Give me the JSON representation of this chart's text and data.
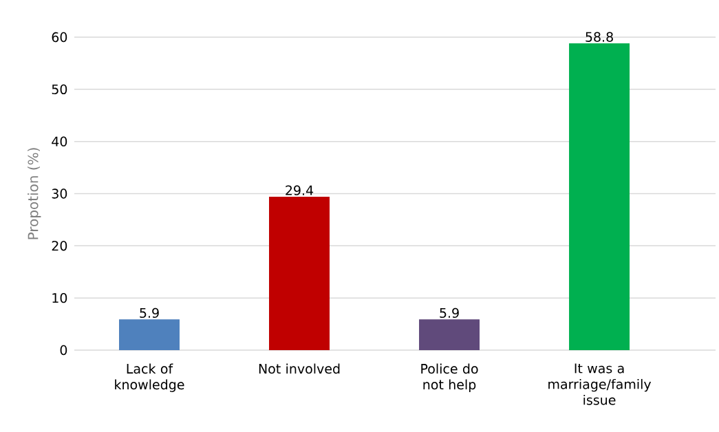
{
  "chart_data": {
    "type": "bar",
    "ylabel": "Propotion (%)",
    "categories": [
      "Lack of knowledge",
      "Not involved",
      "Police do not help",
      "It was a marriage/family issue"
    ],
    "values": [
      5.9,
      29.4,
      5.9,
      58.8
    ],
    "colors": [
      "#4f81bd",
      "#c00000",
      "#604a7b",
      "#00b050"
    ],
    "ylim": [
      0,
      60
    ],
    "yticks": [
      0,
      10,
      20,
      30,
      40,
      50,
      60
    ],
    "grid": "y",
    "data_labels": true
  }
}
